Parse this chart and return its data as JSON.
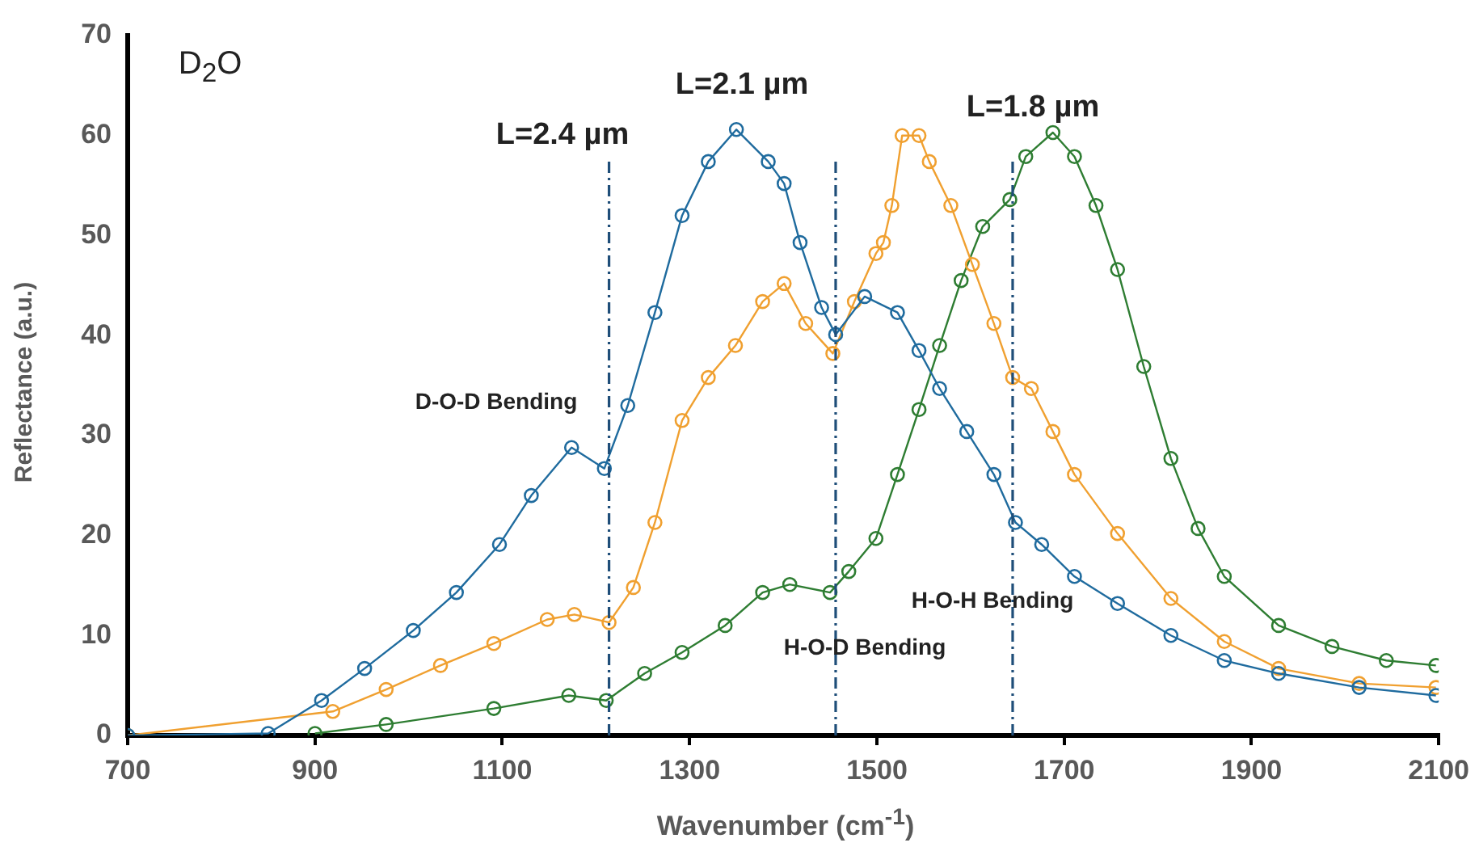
{
  "chart_data": {
    "type": "line",
    "xlabel": "Wavenumber (cm$^{-1}$)",
    "ylabel": "Reflectance (a.u.)",
    "xlim": [
      700,
      2100
    ],
    "xticks": [
      700,
      900,
      1100,
      1300,
      1500,
      1700,
      1900,
      2100
    ],
    "ylim": [
      0,
      70
    ],
    "yticks": [
      0,
      10,
      20,
      30,
      40,
      50,
      60,
      70
    ],
    "grid": false,
    "legend": false,
    "marker": "circle",
    "line_style": "solid",
    "series": [
      {
        "color": "#1f6b9e",
        "x": [
          700,
          850,
          907,
          953,
          1005,
          1051,
          1097,
          1131,
          1174,
          1209,
          1234,
          1263,
          1292,
          1320,
          1350,
          1384,
          1401,
          1418,
          1441,
          1456,
          1487,
          1522,
          1545,
          1567,
          1596,
          1625,
          1648,
          1676,
          1711,
          1757,
          1814,
          1871,
          1929,
          2015,
          2097
        ],
        "values": [
          0,
          0.2,
          3.5,
          6.7,
          10.5,
          14.3,
          19.1,
          24,
          28.8,
          26.7,
          33,
          42.3,
          52,
          57.4,
          60.6,
          57.4,
          55.2,
          49.3,
          42.8,
          40.1,
          43.9,
          42.3,
          38.5,
          34.7,
          30.4,
          26.1,
          21.3,
          19.1,
          15.9,
          13.2,
          10,
          7.5,
          6.2,
          4.8,
          4
        ]
      },
      {
        "color": "#f0a030",
        "x": [
          700,
          850,
          919,
          976,
          1034,
          1091,
          1148,
          1177,
          1214,
          1240,
          1263,
          1292,
          1320,
          1349,
          1378,
          1401,
          1424,
          1453,
          1476,
          1499,
          1507,
          1516,
          1527,
          1545,
          1556,
          1579,
          1602,
          1625,
          1645,
          1665,
          1688,
          1711,
          1757,
          1814,
          1871,
          1929,
          2015,
          2097
        ],
        "values": [
          0,
          null,
          2.4,
          4.6,
          7,
          9.2,
          11.6,
          12.1,
          11.3,
          14.8,
          21.3,
          31.5,
          35.8,
          39,
          43.4,
          45.2,
          41.2,
          38.2,
          43.4,
          48.2,
          49.3,
          53,
          60,
          60,
          57.4,
          53,
          47.1,
          41.2,
          35.8,
          34.7,
          30.4,
          26.1,
          20.2,
          13.7,
          9.4,
          6.7,
          5.2,
          4.8
        ]
      },
      {
        "color": "#2e7d32",
        "x": [
          900,
          976,
          1091,
          1171,
          1211,
          1252,
          1292,
          1338,
          1378,
          1407,
          1450,
          1470,
          1499,
          1522,
          1545,
          1567,
          1590,
          1613,
          1642,
          1659,
          1688,
          1711,
          1734,
          1757,
          1785,
          1814,
          1843,
          1871,
          1929,
          1986,
          2044,
          2097
        ],
        "values": [
          0.2,
          1.1,
          2.7,
          4,
          3.5,
          6.2,
          8.3,
          11,
          14.3,
          15.1,
          14.3,
          16.4,
          19.7,
          26.1,
          32.6,
          39,
          45.5,
          50.9,
          53.6,
          57.9,
          60.3,
          57.9,
          53,
          46.6,
          36.9,
          27.7,
          20.7,
          15.9,
          11,
          8.9,
          7.5,
          7
        ]
      }
    ],
    "ref_lines": [
      {
        "axis": "x",
        "value": 1214,
        "color": "#1f4e79",
        "line_style": "dashed"
      },
      {
        "axis": "x",
        "value": 1456,
        "color": "#1f4e79",
        "line_style": "dashed"
      },
      {
        "axis": "x",
        "value": 1645,
        "color": "#1f4e79",
        "line_style": "dashed"
      }
    ],
    "annotations": [
      "D$_{2}$O",
      "L=2.4 µm",
      "L=2.1 µm",
      "L=1.8 µm",
      "D-O-D Bending",
      "H-O-H Bending",
      "H-O-D Bending"
    ]
  }
}
